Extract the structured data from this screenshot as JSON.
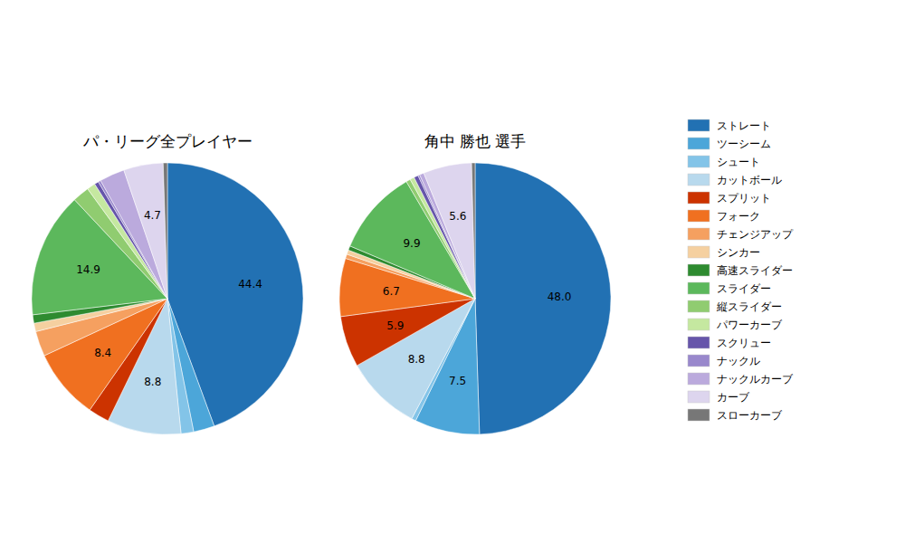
{
  "chart_data": [
    {
      "type": "pie",
      "title": "パ・リーグ全プレイヤー",
      "categories": [
        "ストレート",
        "ツーシーム",
        "シュート",
        "カットボール",
        "スプリット",
        "フォーク",
        "チェンジアップ",
        "シンカー",
        "高速スライダー",
        "スライダー",
        "縦スライダー",
        "パワーカーブ",
        "スクリュー",
        "ナックル",
        "ナックルカーブ",
        "カーブ",
        "スローカーブ"
      ],
      "values": [
        44.4,
        2.5,
        1.5,
        8.8,
        2.5,
        8.4,
        3.0,
        1.0,
        1.0,
        14.9,
        2.0,
        1.0,
        0.5,
        0.3,
        3.0,
        4.7,
        0.5
      ],
      "value_labels": [
        "44.4",
        null,
        null,
        "8.8",
        null,
        "8.4",
        null,
        null,
        null,
        "14.9",
        null,
        null,
        null,
        null,
        null,
        "4.7",
        null
      ],
      "colors": [
        "#2271b3",
        "#4ca6d9",
        "#83c4e8",
        "#b8d9ed",
        "#cc3300",
        "#f07020",
        "#f5a060",
        "#f5d0a0",
        "#2e8b30",
        "#5cb85c",
        "#90cc70",
        "#c5e8a0",
        "#6655aa",
        "#9988cc",
        "#bbaadd",
        "#ddd5ee",
        "#777777"
      ],
      "data_labels": true,
      "legend": "right"
    },
    {
      "type": "pie",
      "title": "角中 勝也 選手",
      "categories": [
        "ストレート",
        "ツーシーム",
        "シュート",
        "カットボール",
        "スプリット",
        "フォーク",
        "チェンジアップ",
        "シンカー",
        "高速スライダー",
        "スライダー",
        "縦スライダー",
        "パワーカーブ",
        "スクリュー",
        "ナックル",
        "ナックルカーブ",
        "カーブ",
        "スローカーブ"
      ],
      "values": [
        48.0,
        7.5,
        0.5,
        8.8,
        5.9,
        6.7,
        0.5,
        0.5,
        0.5,
        9.9,
        0.5,
        0.5,
        0.5,
        0.2,
        0.5,
        5.6,
        0.4
      ],
      "value_labels": [
        "48.0",
        "7.5",
        null,
        "8.8",
        "5.9",
        "6.7",
        null,
        null,
        null,
        "9.9",
        null,
        null,
        null,
        null,
        null,
        "5.6",
        null
      ],
      "colors": [
        "#2271b3",
        "#4ca6d9",
        "#83c4e8",
        "#b8d9ed",
        "#cc3300",
        "#f07020",
        "#f5a060",
        "#f5d0a0",
        "#2e8b30",
        "#5cb85c",
        "#90cc70",
        "#c5e8a0",
        "#6655aa",
        "#9988cc",
        "#bbaadd",
        "#ddd5ee",
        "#777777"
      ],
      "data_labels": true
    }
  ]
}
